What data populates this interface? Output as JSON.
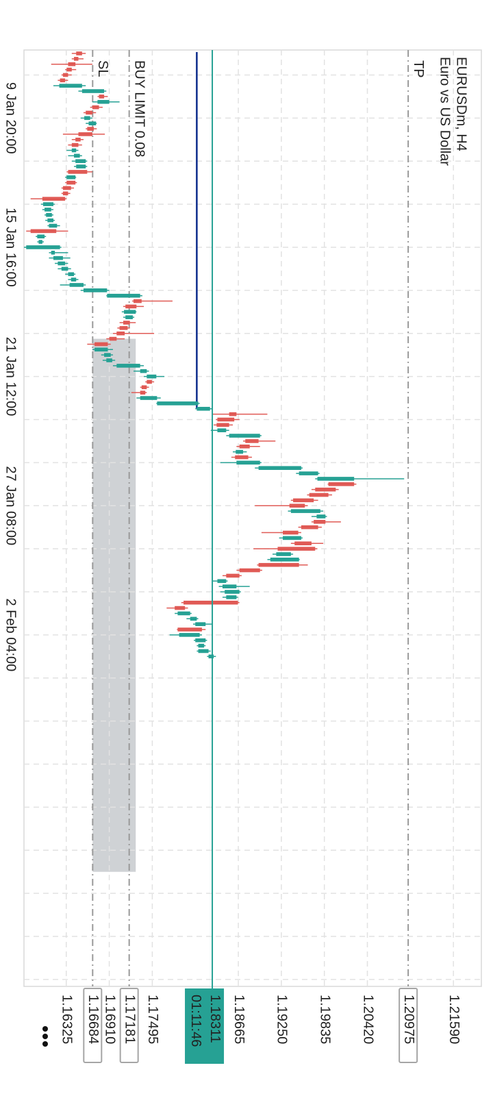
{
  "chart_data": {
    "type": "candlestick",
    "title": "EURUSDm, H4",
    "subtitle": "Euro vs US Dollar",
    "categories": [
      null,
      null,
      null,
      null,
      null,
      null,
      null,
      null,
      null,
      null,
      null,
      null,
      "9 Jan 20:00",
      null,
      null,
      null,
      null,
      null,
      null,
      null,
      null,
      null,
      null,
      null,
      null,
      null,
      null,
      null,
      null,
      null,
      null,
      null,
      null,
      null,
      null,
      null,
      "15 Jan 16:00",
      null,
      null,
      null,
      null,
      null,
      null,
      null,
      null,
      null,
      null,
      null,
      null,
      null,
      null,
      null,
      null,
      null,
      null,
      null,
      null,
      null,
      null,
      null,
      "21 Jan 12:00",
      null,
      null,
      null,
      null,
      null,
      null,
      null,
      null,
      null,
      null,
      null,
      null,
      null,
      null,
      null,
      null,
      null,
      null,
      null,
      null,
      null,
      null,
      null,
      "27 Jan 08:00",
      null,
      null,
      null,
      null,
      null,
      null,
      null,
      null,
      null,
      null,
      null,
      null,
      null,
      null,
      null,
      null,
      null,
      null,
      null,
      null,
      null,
      null,
      null,
      "2 Feb 04:00",
      null,
      null,
      null,
      null
    ],
    "open": [
      1.1654,
      1.1649,
      1.1645,
      1.164,
      1.1635,
      1.1631,
      1.1623,
      1.1654,
      1.1684,
      1.1675,
      1.1677,
      1.1668,
      1.1657,
      1.1663,
      1.167,
      1.1668,
      1.1652,
      1.1649,
      1.164,
      1.1643,
      1.1645,
      1.1646,
      1.1661,
      1.1633,
      1.1645,
      1.1639,
      1.1635,
      1.1631,
      1.1601,
      1.1603,
      1.1605,
      1.1607,
      1.1609,
      1.1619,
      1.1593,
      1.1595,
      1.1578,
      1.1612,
      1.1615,
      1.1621,
      1.1626,
      1.1635,
      1.1639,
      1.1637,
      1.1656,
      1.1688,
      1.1735,
      1.1728,
      1.1711,
      1.1713,
      1.1719,
      1.1716,
      1.1712,
      1.1701,
      1.1689,
      1.1671,
      1.1684,
      1.1687,
      1.1701,
      1.1733,
      1.1742,
      1.1749,
      1.1742,
      1.174,
      1.1733,
      1.1756,
      1.181,
      1.1864,
      1.1861,
      1.1854,
      1.1838,
      1.1854,
      1.1894,
      1.1882,
      1.1863,
      1.188,
      1.1864,
      1.1894,
      1.1949,
      1.1974,
      1.2024,
      1.1999,
      1.1989,
      1.1969,
      1.1957,
      1.1938,
      1.1973,
      1.1985,
      1.1975,
      1.1948,
      1.1927,
      1.1966,
      1.1971,
      1.1918,
      1.191,
      1.1949,
      1.1896,
      1.1868,
      1.1838,
      1.1845,
      1.1848,
      1.185,
      1.1866,
      1.1794,
      1.1784,
      1.1801,
      1.1808,
      1.1817,
      1.1786,
      1.1808,
      1.1812,
      1.1812,
      1.1826
    ],
    "high": [
      1.1659,
      1.1656,
      1.1668,
      1.1646,
      1.164,
      1.1635,
      1.1659,
      1.1687,
      1.1689,
      1.1705,
      1.1682,
      1.1673,
      1.1668,
      1.1674,
      1.1674,
      1.1685,
      1.1656,
      1.1654,
      1.1649,
      1.1654,
      1.1661,
      1.1661,
      1.1668,
      1.1646,
      1.1647,
      1.1643,
      1.1638,
      1.1633,
      1.1617,
      1.1615,
      1.1615,
      1.1617,
      1.1624,
      1.1635,
      1.1605,
      1.1602,
      1.1626,
      1.1635,
      1.1638,
      1.1635,
      1.1639,
      1.1645,
      1.1649,
      1.1659,
      1.1691,
      1.1736,
      1.1777,
      1.1738,
      1.1728,
      1.1725,
      1.1727,
      1.1719,
      1.1752,
      1.1712,
      1.1693,
      1.1696,
      1.1696,
      1.1699,
      1.1738,
      1.1745,
      1.1766,
      1.1752,
      1.1745,
      1.1742,
      1.1761,
      1.1814,
      1.1831,
      1.1906,
      1.1868,
      1.1859,
      1.1854,
      1.1898,
      1.1917,
      1.1896,
      1.1878,
      1.1885,
      1.1898,
      1.1954,
      1.1977,
      1.2092,
      1.2027,
      1.2003,
      1.1994,
      1.1975,
      1.1961,
      1.1982,
      1.1987,
      1.2006,
      1.198,
      1.1952,
      1.1954,
      1.1982,
      1.1974,
      1.1941,
      1.195,
      1.1961,
      1.1899,
      1.1871,
      1.1852,
      1.1882,
      1.187,
      1.1866,
      1.1868,
      1.1798,
      1.1803,
      1.1812,
      1.1831,
      1.1822,
      1.1817,
      1.1824,
      1.1822,
      1.1829,
      1.1836
    ],
    "low": [
      1.164,
      1.164,
      1.1612,
      1.1631,
      1.1626,
      1.1621,
      1.1615,
      1.1649,
      1.1675,
      1.1668,
      1.1665,
      1.1656,
      1.1652,
      1.1659,
      1.1659,
      1.1628,
      1.164,
      1.1635,
      1.1633,
      1.1635,
      1.164,
      1.1643,
      1.1633,
      1.1631,
      1.1631,
      1.1626,
      1.1626,
      1.1584,
      1.1598,
      1.16,
      1.1603,
      1.1604,
      1.1607,
      1.1578,
      1.1591,
      1.1593,
      1.1575,
      1.1609,
      1.1609,
      1.1617,
      1.1621,
      1.1631,
      1.1635,
      1.1624,
      1.1652,
      1.1687,
      1.1722,
      1.171,
      1.1708,
      1.171,
      1.1705,
      1.1702,
      1.1696,
      1.1687,
      1.1661,
      1.1668,
      1.168,
      1.1682,
      1.1696,
      1.1724,
      1.1738,
      1.174,
      1.1733,
      1.1721,
      1.1728,
      1.1755,
      1.1808,
      1.1831,
      1.1836,
      1.1833,
      1.1829,
      1.185,
      1.1873,
      1.1864,
      1.1859,
      1.1857,
      1.1842,
      1.1889,
      1.1945,
      1.1971,
      1.1988,
      1.1966,
      1.196,
      1.1938,
      1.1889,
      1.1934,
      1.1966,
      1.1966,
      1.1948,
      1.1898,
      1.1922,
      1.1938,
      1.1887,
      1.1913,
      1.1906,
      1.1892,
      1.1864,
      1.1845,
      1.1831,
      1.184,
      1.1842,
      1.1845,
      1.1789,
      1.1769,
      1.178,
      1.1796,
      1.1805,
      1.1783,
      1.1773,
      1.1806,
      1.181,
      1.181,
      1.1824
    ],
    "close": [
      1.1646,
      1.1643,
      1.1635,
      1.1633,
      1.1628,
      1.1624,
      1.1654,
      1.1684,
      1.1677,
      1.1691,
      1.1668,
      1.1659,
      1.1665,
      1.1673,
      1.1661,
      1.1649,
      1.1645,
      1.164,
      1.1646,
      1.1651,
      1.1659,
      1.1659,
      1.1635,
      1.1645,
      1.1633,
      1.1628,
      1.1628,
      1.16,
      1.1615,
      1.1612,
      1.1613,
      1.1615,
      1.162,
      1.1584,
      1.1603,
      1.16,
      1.1624,
      1.1617,
      1.1628,
      1.1631,
      1.1635,
      1.1643,
      1.1646,
      1.1656,
      1.1688,
      1.1733,
      1.1724,
      1.1713,
      1.1727,
      1.1723,
      1.171,
      1.1705,
      1.1701,
      1.1691,
      1.1671,
      1.1689,
      1.1693,
      1.1695,
      1.1733,
      1.1742,
      1.1755,
      1.1742,
      1.1735,
      1.1733,
      1.1756,
      1.1812,
      1.1828,
      1.1854,
      1.1838,
      1.1837,
      1.185,
      1.1896,
      1.1876,
      1.1868,
      1.1873,
      1.1862,
      1.1896,
      1.1952,
      1.1975,
      1.2024,
      1.1989,
      1.1971,
      1.1963,
      1.1941,
      1.1936,
      1.1978,
      1.1985,
      1.1969,
      1.1952,
      1.1927,
      1.1952,
      1.1943,
      1.192,
      1.1938,
      1.1949,
      1.1894,
      1.1868,
      1.185,
      1.185,
      1.1864,
      1.1868,
      1.1864,
      1.1792,
      1.178,
      1.1801,
      1.181,
      1.1822,
      1.1784,
      1.1814,
      1.1822,
      1.182,
      1.1826,
      1.1833
    ],
    "up_color": "#26a194",
    "down_color": "#e05a55",
    "ylim": [
      1.1575,
      1.2197
    ],
    "yticks": [
      1.16325,
      {
        "value": 1.1691,
        "label": "1.16910"
      },
      1.17495,
      1.18665,
      {
        "value": 1.1925,
        "label": "1.19250"
      },
      1.19835,
      {
        "value": 1.2042,
        "label": "1.20420"
      },
      {
        "value": 1.2159,
        "label": "1.21590"
      }
    ],
    "grid": true,
    "levels": [
      {
        "name": "SL",
        "value": 1.16684
      },
      {
        "name": "BUY LIMIT 0.08",
        "value": 1.17181
      },
      {
        "name": "TP",
        "value": 1.20975
      }
    ],
    "current_price": 1.18311,
    "countdown": "01:11:46",
    "zone": {
      "low": 1.16684,
      "high": 1.1727,
      "start": 53,
      "end": 152
    },
    "indicator": {
      "value": 1.181,
      "end": 66,
      "color": "#0b2a8a"
    }
  }
}
